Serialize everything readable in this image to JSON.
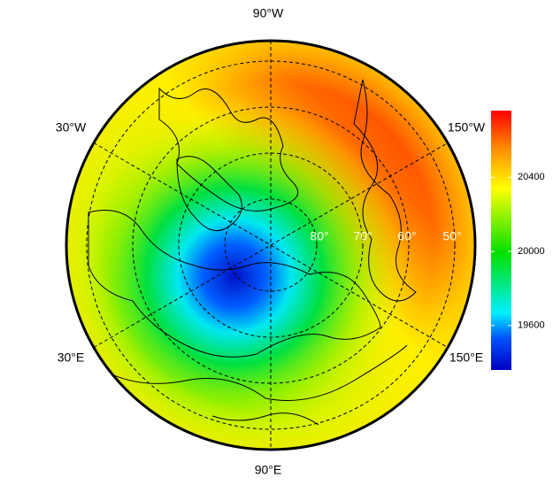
{
  "map": {
    "lon_labels": [
      "90°W",
      "30°W",
      "150°W",
      "30°E",
      "150°E",
      "90°E"
    ],
    "lat_labels": [
      "80°",
      "70°",
      "60°",
      "50°"
    ],
    "colorbar": {
      "range": [
        19360,
        20760
      ],
      "ticks": [
        19600,
        20000,
        20400
      ]
    }
  }
}
